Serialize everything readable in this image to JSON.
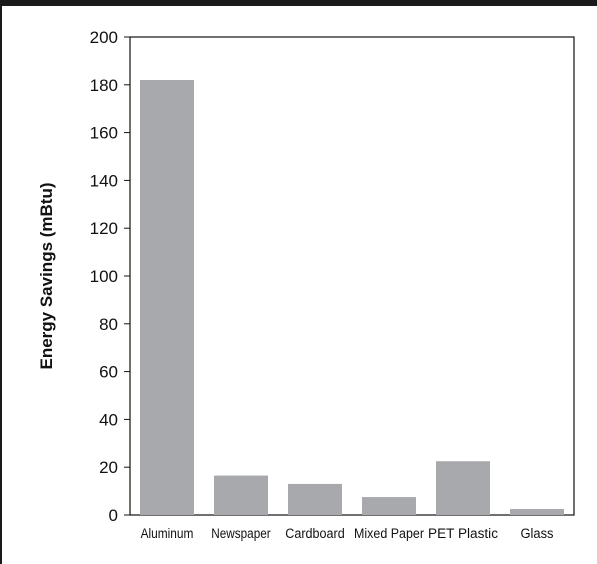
{
  "chart_data": {
    "type": "bar",
    "categories": [
      "Aluminum",
      "Newspaper",
      "Cardboard",
      "Mixed Paper",
      "PET Plastic",
      "Glass"
    ],
    "values": [
      182,
      16.5,
      13,
      7.5,
      22.5,
      2.5
    ],
    "title": "",
    "xlabel": "",
    "ylabel": "Energy Savings (mBtu)",
    "ylim": [
      0,
      200
    ],
    "yticks": [
      0,
      20,
      40,
      60,
      80,
      100,
      120,
      140,
      160,
      180,
      200
    ],
    "grid": false,
    "bar_color": "#a7a9ac"
  }
}
